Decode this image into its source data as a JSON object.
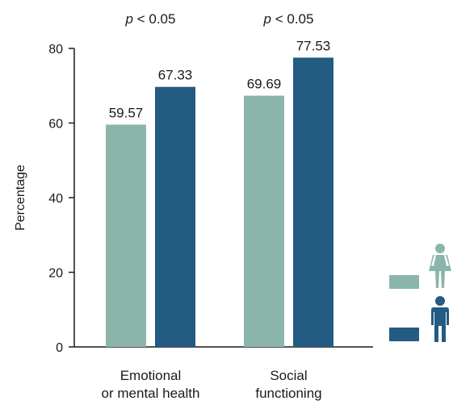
{
  "chart_data": {
    "type": "bar",
    "categories": [
      "Emotional\nor mental health",
      "Social\nfunctioning"
    ],
    "series": [
      {
        "legend_icon": "female-icon",
        "color": "#8bb5ab",
        "values": [
          59.57,
          67.33
        ]
      },
      {
        "legend_icon": "male-icon",
        "color": "#235b82",
        "values": [
          69.69,
          77.53
        ]
      }
    ],
    "value_labels": [
      "59.57",
      "67.33",
      "69.69",
      "77.53"
    ],
    "ylabel": "Percentage",
    "ylim": [
      0,
      80
    ],
    "yticks": [
      0,
      20,
      40,
      60,
      80
    ],
    "ytick_labels": [
      "0",
      "20",
      "40",
      "60",
      "80"
    ],
    "annotations": [
      {
        "p_symbol": "p",
        "p_rest": " < 0.05"
      },
      {
        "p_symbol": "p",
        "p_rest": " < 0.05"
      }
    ],
    "grid": false,
    "legend_position": "bottom-right"
  }
}
